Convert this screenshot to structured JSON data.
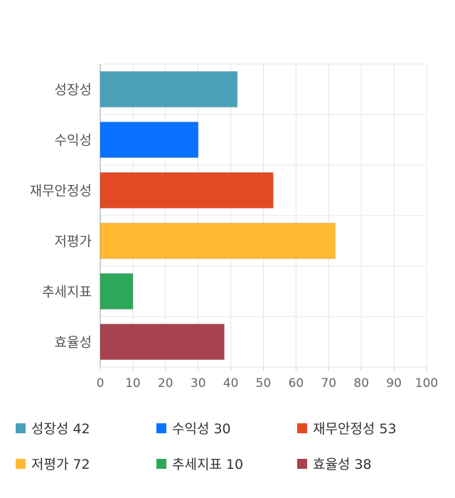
{
  "chart_data": {
    "type": "bar",
    "orientation": "horizontal",
    "categories": [
      "성장성",
      "수익성",
      "재무안정성",
      "저평가",
      "추세지표",
      "효율성"
    ],
    "values": [
      42,
      30,
      53,
      72,
      10,
      38
    ],
    "colors": [
      "#4aa0b8",
      "#0a72ff",
      "#e24a24",
      "#ffb933",
      "#2ea75a",
      "#a6424e"
    ],
    "xlim": [
      0,
      100
    ],
    "xticks": [
      "0",
      "10",
      "20",
      "30",
      "40",
      "50",
      "60",
      "70",
      "80",
      "90",
      "100"
    ],
    "grid": true,
    "legend_position": "bottom"
  },
  "legend": [
    {
      "label": "성장성",
      "value": "42"
    },
    {
      "label": "수익성",
      "value": "30"
    },
    {
      "label": "재무안정성",
      "value": "53"
    },
    {
      "label": "저평가",
      "value": "72"
    },
    {
      "label": "추세지표",
      "value": "10"
    },
    {
      "label": "효율성",
      "value": "38"
    }
  ]
}
